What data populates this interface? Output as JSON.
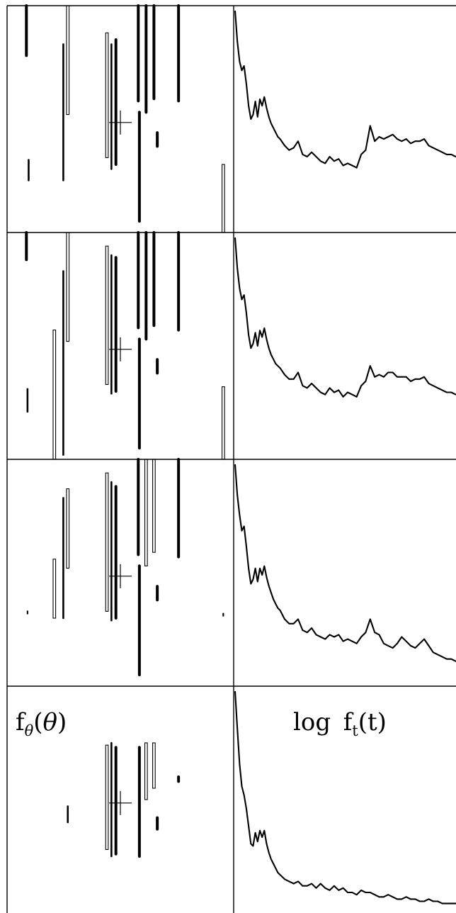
{
  "chart_data": [
    {
      "type": "line",
      "panel": 1,
      "left_label": "",
      "right_label": "",
      "left_plot": {
        "marker": "cross",
        "spikes": [
          {
            "x": 0.08,
            "y1": 0.0,
            "y2": 0.22,
            "style": "thick"
          },
          {
            "x": 0.09,
            "y1": 0.68,
            "y2": 0.77,
            "style": "medium"
          },
          {
            "x": 0.245,
            "y1": 0.17,
            "y2": 0.77,
            "style": "medium"
          },
          {
            "x": 0.265,
            "y1": 0.0,
            "y2": 0.48,
            "style": "hollow"
          },
          {
            "x": 0.44,
            "y1": 0.12,
            "y2": 0.67,
            "style": "hollow"
          },
          {
            "x": 0.46,
            "y1": 0.17,
            "y2": 0.72,
            "style": "medium"
          },
          {
            "x": 0.48,
            "y1": 0.15,
            "y2": 0.7,
            "style": "thick"
          },
          {
            "x": 0.58,
            "y1": 0.0,
            "y2": 0.42,
            "style": "thick"
          },
          {
            "x": 0.585,
            "y1": 0.47,
            "y2": 0.95,
            "style": "thick"
          },
          {
            "x": 0.615,
            "y1": 0.0,
            "y2": 0.47,
            "style": "thick"
          },
          {
            "x": 0.65,
            "y1": 0.0,
            "y2": 0.41,
            "style": "thick"
          },
          {
            "x": 0.665,
            "y1": 0.56,
            "y2": 0.62,
            "style": "thick"
          },
          {
            "x": 0.76,
            "y1": 0.0,
            "y2": 0.42,
            "style": "thick"
          },
          {
            "x": 0.96,
            "y1": 0.7,
            "y2": 1.0,
            "style": "hollow"
          }
        ]
      },
      "right_plot": {
        "x": [
          0,
          0.01,
          0.02,
          0.03,
          0.04,
          0.05,
          0.06,
          0.07,
          0.08,
          0.09,
          0.1,
          0.11,
          0.12,
          0.13,
          0.14,
          0.15,
          0.16,
          0.17,
          0.18,
          0.19,
          0.2,
          0.22,
          0.24,
          0.26,
          0.28,
          0.3,
          0.32,
          0.34,
          0.36,
          0.38,
          0.4,
          0.42,
          0.44,
          0.46,
          0.48,
          0.5,
          0.52,
          0.54,
          0.56,
          0.58,
          0.6,
          0.62,
          0.64,
          0.66,
          0.68,
          0.7,
          0.72,
          0.74,
          0.76,
          0.78,
          0.8,
          0.82,
          0.84,
          0.86,
          0.88,
          0.9,
          0.92,
          0.94,
          0.96,
          0.98,
          1.0
        ],
        "y": [
          0.99,
          0.85,
          0.76,
          0.72,
          0.74,
          0.66,
          0.56,
          0.5,
          0.52,
          0.58,
          0.51,
          0.59,
          0.56,
          0.6,
          0.55,
          0.51,
          0.48,
          0.46,
          0.44,
          0.42,
          0.41,
          0.38,
          0.36,
          0.37,
          0.4,
          0.34,
          0.33,
          0.35,
          0.33,
          0.31,
          0.3,
          0.33,
          0.31,
          0.32,
          0.29,
          0.3,
          0.29,
          0.28,
          0.34,
          0.36,
          0.47,
          0.4,
          0.42,
          0.41,
          0.42,
          0.43,
          0.41,
          0.4,
          0.41,
          0.39,
          0.4,
          0.4,
          0.41,
          0.38,
          0.37,
          0.36,
          0.35,
          0.34,
          0.34,
          0.33,
          0.33
        ]
      }
    },
    {
      "type": "line",
      "panel": 2,
      "left_label": "",
      "right_label": "",
      "left_plot": {
        "marker": "cross",
        "spikes": [
          {
            "x": 0.08,
            "y1": 0.0,
            "y2": 0.12,
            "style": "thick"
          },
          {
            "x": 0.085,
            "y1": 0.69,
            "y2": 0.79,
            "style": "medium"
          },
          {
            "x": 0.205,
            "y1": 0.43,
            "y2": 1.0,
            "style": "hollow"
          },
          {
            "x": 0.245,
            "y1": 0.17,
            "y2": 0.98,
            "style": "medium"
          },
          {
            "x": 0.265,
            "y1": 0.0,
            "y2": 0.48,
            "style": "hollow"
          },
          {
            "x": 0.44,
            "y1": 0.06,
            "y2": 0.67,
            "style": "hollow"
          },
          {
            "x": 0.46,
            "y1": 0.1,
            "y2": 0.71,
            "style": "medium"
          },
          {
            "x": 0.48,
            "y1": 0.11,
            "y2": 0.7,
            "style": "thick"
          },
          {
            "x": 0.58,
            "y1": 0.0,
            "y2": 0.42,
            "style": "thick"
          },
          {
            "x": 0.585,
            "y1": 0.47,
            "y2": 0.95,
            "style": "thick"
          },
          {
            "x": 0.615,
            "y1": 0.0,
            "y2": 0.47,
            "style": "thick"
          },
          {
            "x": 0.65,
            "y1": 0.0,
            "y2": 0.41,
            "style": "thick"
          },
          {
            "x": 0.665,
            "y1": 0.56,
            "y2": 0.62,
            "style": "thick"
          },
          {
            "x": 0.76,
            "y1": 0.0,
            "y2": 0.43,
            "style": "thick"
          },
          {
            "x": 0.96,
            "y1": 0.68,
            "y2": 1.0,
            "style": "hollow"
          }
        ]
      },
      "right_plot": {
        "x": [
          0,
          0.01,
          0.02,
          0.03,
          0.04,
          0.05,
          0.06,
          0.07,
          0.08,
          0.09,
          0.1,
          0.11,
          0.12,
          0.13,
          0.14,
          0.15,
          0.16,
          0.17,
          0.18,
          0.19,
          0.2,
          0.22,
          0.24,
          0.26,
          0.28,
          0.3,
          0.32,
          0.34,
          0.36,
          0.38,
          0.4,
          0.42,
          0.44,
          0.46,
          0.48,
          0.5,
          0.52,
          0.54,
          0.56,
          0.58,
          0.6,
          0.62,
          0.64,
          0.66,
          0.68,
          0.7,
          0.72,
          0.74,
          0.76,
          0.78,
          0.8,
          0.82,
          0.84,
          0.86,
          0.88,
          0.9,
          0.92,
          0.94,
          0.96,
          0.98,
          1.0
        ],
        "y": [
          0.99,
          0.85,
          0.76,
          0.71,
          0.73,
          0.65,
          0.55,
          0.49,
          0.51,
          0.56,
          0.5,
          0.57,
          0.54,
          0.58,
          0.53,
          0.49,
          0.46,
          0.44,
          0.42,
          0.41,
          0.4,
          0.37,
          0.35,
          0.35,
          0.38,
          0.32,
          0.31,
          0.33,
          0.31,
          0.29,
          0.28,
          0.31,
          0.29,
          0.3,
          0.27,
          0.29,
          0.28,
          0.27,
          0.32,
          0.34,
          0.41,
          0.36,
          0.37,
          0.36,
          0.38,
          0.38,
          0.36,
          0.36,
          0.36,
          0.34,
          0.35,
          0.35,
          0.36,
          0.33,
          0.32,
          0.31,
          0.3,
          0.29,
          0.29,
          0.28,
          0.28
        ]
      }
    },
    {
      "type": "line",
      "panel": 3,
      "left_label": "",
      "right_label": "",
      "left_plot": {
        "marker": "cross",
        "spikes": [
          {
            "x": 0.085,
            "y1": 0.67,
            "y2": 0.68,
            "style": "dot"
          },
          {
            "x": 0.205,
            "y1": 0.44,
            "y2": 0.7,
            "style": "hollow"
          },
          {
            "x": 0.245,
            "y1": 0.17,
            "y2": 0.7,
            "style": "medium"
          },
          {
            "x": 0.265,
            "y1": 0.13,
            "y2": 0.48,
            "style": "hollow"
          },
          {
            "x": 0.44,
            "y1": 0.06,
            "y2": 0.67,
            "style": "hollow"
          },
          {
            "x": 0.46,
            "y1": 0.1,
            "y2": 0.71,
            "style": "medium"
          },
          {
            "x": 0.48,
            "y1": 0.12,
            "y2": 0.7,
            "style": "thick"
          },
          {
            "x": 0.58,
            "y1": 0.0,
            "y2": 0.42,
            "style": "thick"
          },
          {
            "x": 0.585,
            "y1": 0.47,
            "y2": 0.95,
            "style": "thick"
          },
          {
            "x": 0.615,
            "y1": 0.0,
            "y2": 0.47,
            "style": "hollow"
          },
          {
            "x": 0.65,
            "y1": 0.0,
            "y2": 0.41,
            "style": "hollow"
          },
          {
            "x": 0.665,
            "y1": 0.56,
            "y2": 0.62,
            "style": "thick"
          },
          {
            "x": 0.76,
            "y1": 0.0,
            "y2": 0.43,
            "style": "thick"
          },
          {
            "x": 0.96,
            "y1": 0.68,
            "y2": 0.69,
            "style": "dot"
          }
        ]
      },
      "right_plot": {
        "x": [
          0,
          0.01,
          0.02,
          0.03,
          0.04,
          0.05,
          0.06,
          0.07,
          0.08,
          0.09,
          0.1,
          0.11,
          0.12,
          0.13,
          0.14,
          0.15,
          0.16,
          0.17,
          0.18,
          0.19,
          0.2,
          0.22,
          0.24,
          0.26,
          0.28,
          0.3,
          0.32,
          0.34,
          0.36,
          0.38,
          0.4,
          0.42,
          0.44,
          0.46,
          0.48,
          0.5,
          0.52,
          0.54,
          0.56,
          0.58,
          0.6,
          0.62,
          0.64,
          0.66,
          0.68,
          0.7,
          0.72,
          0.74,
          0.76,
          0.78,
          0.8,
          0.82,
          0.84,
          0.86,
          0.88,
          0.9,
          0.92,
          0.94,
          0.96,
          0.98,
          1.0
        ],
        "y": [
          0.99,
          0.85,
          0.76,
          0.69,
          0.71,
          0.62,
          0.52,
          0.45,
          0.47,
          0.52,
          0.46,
          0.52,
          0.49,
          0.53,
          0.48,
          0.44,
          0.41,
          0.38,
          0.36,
          0.34,
          0.33,
          0.29,
          0.27,
          0.27,
          0.29,
          0.24,
          0.23,
          0.25,
          0.22,
          0.21,
          0.2,
          0.22,
          0.21,
          0.22,
          0.19,
          0.2,
          0.19,
          0.18,
          0.21,
          0.23,
          0.29,
          0.23,
          0.22,
          0.18,
          0.17,
          0.16,
          0.18,
          0.21,
          0.19,
          0.17,
          0.16,
          0.18,
          0.2,
          0.17,
          0.14,
          0.13,
          0.12,
          0.11,
          0.11,
          0.1,
          0.1
        ]
      }
    },
    {
      "type": "line",
      "panel": 4,
      "left_label": "f_θ(θ)",
      "right_label": "log f_t(t)",
      "left_plot": {
        "marker": "cross",
        "spikes": [
          {
            "x": 0.265,
            "y1": 0.53,
            "y2": 0.6,
            "style": "medium"
          },
          {
            "x": 0.44,
            "y1": 0.26,
            "y2": 0.72,
            "style": "hollow"
          },
          {
            "x": 0.46,
            "y1": 0.25,
            "y2": 0.75,
            "style": "medium"
          },
          {
            "x": 0.48,
            "y1": 0.27,
            "y2": 0.74,
            "style": "thick"
          },
          {
            "x": 0.585,
            "y1": 0.27,
            "y2": 0.75,
            "style": "thick"
          },
          {
            "x": 0.615,
            "y1": 0.25,
            "y2": 0.5,
            "style": "hollow"
          },
          {
            "x": 0.65,
            "y1": 0.25,
            "y2": 0.45,
            "style": "hollow"
          },
          {
            "x": 0.665,
            "y1": 0.58,
            "y2": 0.63,
            "style": "thick"
          },
          {
            "x": 0.76,
            "y1": 0.4,
            "y2": 0.42,
            "style": "thick"
          }
        ]
      },
      "right_plot": {
        "x": [
          0,
          0.01,
          0.02,
          0.03,
          0.04,
          0.05,
          0.06,
          0.07,
          0.08,
          0.09,
          0.1,
          0.11,
          0.12,
          0.13,
          0.14,
          0.15,
          0.16,
          0.17,
          0.18,
          0.19,
          0.2,
          0.22,
          0.24,
          0.26,
          0.28,
          0.3,
          0.32,
          0.34,
          0.36,
          0.38,
          0.4,
          0.42,
          0.44,
          0.46,
          0.48,
          0.5,
          0.52,
          0.54,
          0.56,
          0.58,
          0.6,
          0.62,
          0.64,
          0.66,
          0.68,
          0.7,
          0.72,
          0.74,
          0.76,
          0.78,
          0.8,
          0.82,
          0.84,
          0.86,
          0.88,
          0.9,
          0.92,
          0.94,
          0.96,
          0.98,
          1.0
        ],
        "y": [
          0.99,
          0.82,
          0.66,
          0.56,
          0.52,
          0.46,
          0.38,
          0.3,
          0.29,
          0.35,
          0.31,
          0.36,
          0.33,
          0.36,
          0.3,
          0.26,
          0.23,
          0.21,
          0.19,
          0.17,
          0.16,
          0.14,
          0.13,
          0.12,
          0.13,
          0.11,
          0.11,
          0.12,
          0.1,
          0.12,
          0.1,
          0.09,
          0.11,
          0.09,
          0.1,
          0.08,
          0.08,
          0.07,
          0.09,
          0.08,
          0.08,
          0.07,
          0.06,
          0.06,
          0.07,
          0.06,
          0.05,
          0.05,
          0.06,
          0.05,
          0.05,
          0.04,
          0.04,
          0.05,
          0.04,
          0.04,
          0.03,
          0.03,
          0.03,
          0.03,
          0.03
        ]
      }
    }
  ]
}
